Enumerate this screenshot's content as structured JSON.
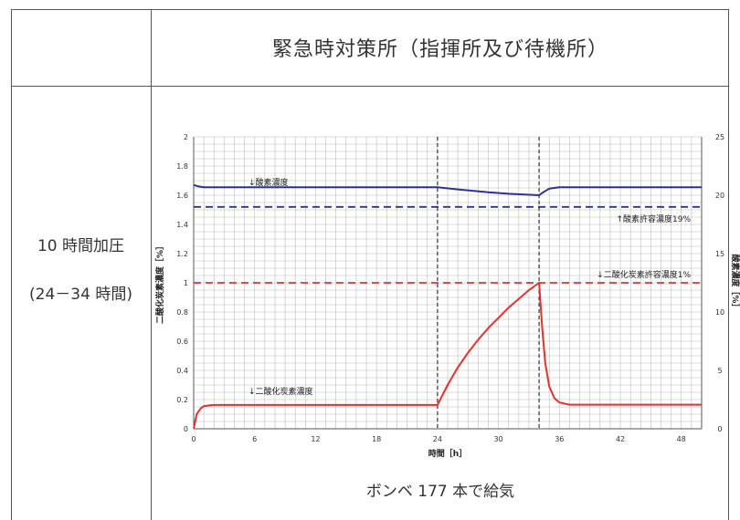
{
  "header": {
    "title": "緊急時対策所（指揮所及び待機所）"
  },
  "left": {
    "line1": "10 時間加圧",
    "line2": "(24－34 時間)"
  },
  "footer": {
    "text": "ボンベ 177 本で給気"
  },
  "chart_data": {
    "type": "line",
    "xlabel": "時間［h］",
    "ylabel_left": "二酸化炭素濃度［%］",
    "ylabel_right": "酸素濃度［%］",
    "xlim": [
      0,
      50
    ],
    "ylim_left": [
      0,
      2
    ],
    "ylim_right": [
      0,
      25
    ],
    "x_ticks": [
      0,
      6,
      12,
      18,
      24,
      30,
      36,
      42,
      48
    ],
    "y_left_ticks": [
      0,
      0.2,
      0.4,
      0.6,
      0.8,
      1,
      1.2,
      1.4,
      1.6,
      1.8,
      2
    ],
    "y_right_ticks": [
      0,
      5,
      10,
      15,
      20,
      25
    ],
    "grid": true,
    "markers": [
      24,
      34
    ],
    "series": [
      {
        "name": "酸素濃度",
        "axis": "left",
        "color": "#2e3192",
        "x": [
          0,
          0.5,
          1,
          24,
          26,
          29,
          31,
          34,
          34.4,
          35,
          36,
          50
        ],
        "values": [
          1.67,
          1.66,
          1.655,
          1.655,
          1.64,
          1.62,
          1.61,
          1.6,
          1.62,
          1.645,
          1.655,
          1.655
        ]
      },
      {
        "name": "二酸化炭素濃度",
        "axis": "left",
        "color": "#e8302a",
        "x": [
          0,
          0.3,
          0.7,
          1,
          1.5,
          2,
          24,
          25,
          26,
          27,
          28,
          29,
          30,
          31,
          32,
          33,
          34,
          34.3,
          34.6,
          35,
          35.5,
          36,
          37,
          50
        ],
        "values": [
          0,
          0.1,
          0.14,
          0.155,
          0.16,
          0.163,
          0.163,
          0.3,
          0.42,
          0.52,
          0.61,
          0.69,
          0.76,
          0.83,
          0.89,
          0.95,
          1.0,
          0.7,
          0.45,
          0.29,
          0.21,
          0.18,
          0.165,
          0.165
        ]
      }
    ],
    "thresholds": [
      {
        "label": "↑酸素許容濃度19%",
        "axis": "left",
        "value": 1.52,
        "color": "#2e3192"
      },
      {
        "label": "↓二酸化炭素許容濃度1%",
        "axis": "left",
        "value": 1.0,
        "color": "#e8302a"
      }
    ],
    "annotations": [
      {
        "text": "↓酸素濃度"
      },
      {
        "text": "↓二酸化炭素濃度"
      }
    ]
  }
}
